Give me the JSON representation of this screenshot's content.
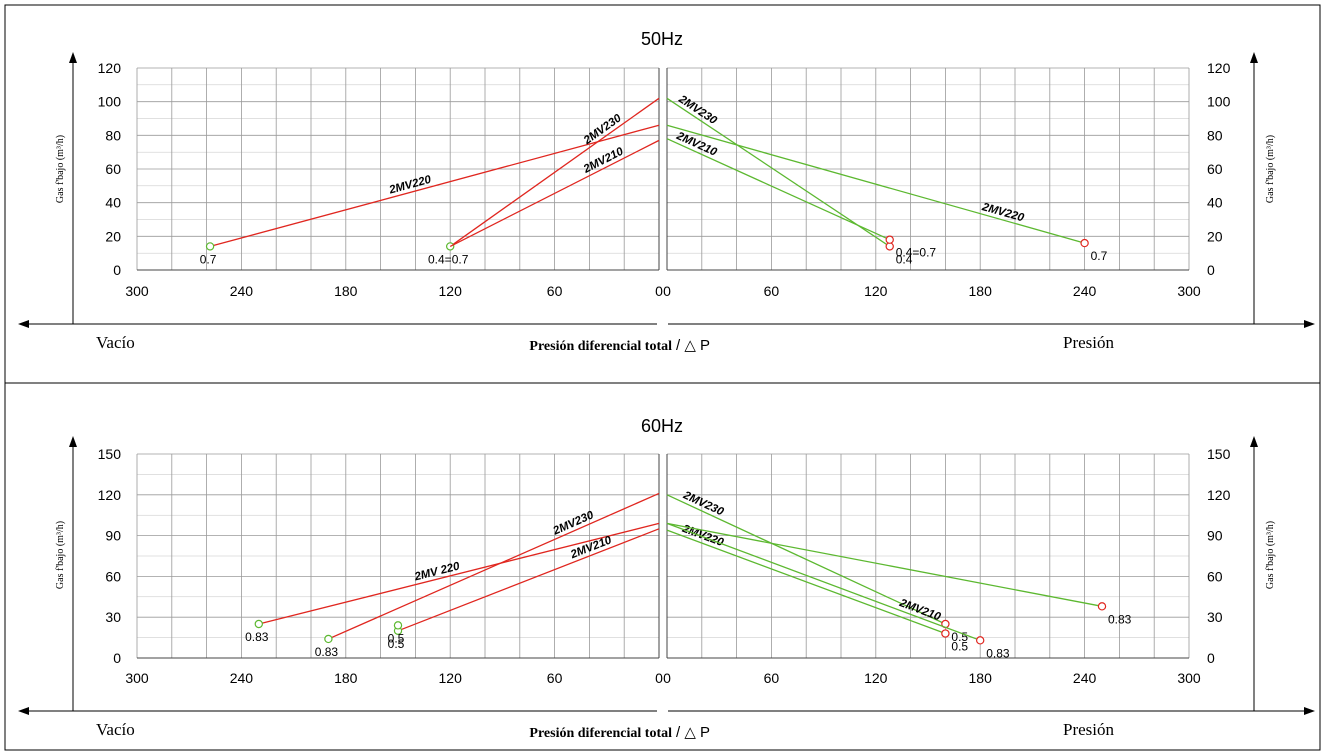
{
  "colors": {
    "vacuum": "#e0261f",
    "pressure": "#5cb830",
    "grid": "#9a9a9a",
    "frame": "#000000"
  },
  "chart_data": [
    {
      "type": "line",
      "title": "50Hz",
      "ylabel": "Gas f'bajo (m³/h)",
      "xlabel": "Presión diferencial total",
      "xlabel_suffix": "/ △  P",
      "left_label": "Vacío",
      "right_label": "Presión",
      "ylim": [
        0,
        120
      ],
      "yticks": [
        "0",
        "20",
        "40",
        "60",
        "80",
        "100",
        "120"
      ],
      "xlim_left": [
        0,
        300
      ],
      "xlim_right": [
        0,
        300
      ],
      "xticks_left": [
        "300",
        "240",
        "180",
        "120",
        "60",
        "0"
      ],
      "xticks_right": [
        "0",
        "60",
        "120",
        "180",
        "240",
        "300"
      ],
      "grid": true,
      "vacuum_series": [
        {
          "name": "2MV220",
          "x": [
            0,
            258
          ],
          "y": [
            86,
            14
          ],
          "marker": {
            "x": 258,
            "y": 14,
            "label": "0.7"
          }
        },
        {
          "name": "2MV230",
          "x": [
            0,
            120
          ],
          "y": [
            102,
            14
          ],
          "marker": {
            "x": 120,
            "y": 14,
            "label": "0.4=0.7"
          }
        },
        {
          "name": "2MV210",
          "x": [
            0,
            120
          ],
          "y": [
            77,
            14
          ]
        }
      ],
      "pressure_series": [
        {
          "name": "2MV230",
          "x": [
            0,
            128
          ],
          "y": [
            102,
            14
          ],
          "marker": {
            "x": 128,
            "y": 14,
            "label": "0.4"
          }
        },
        {
          "name": "2MV210",
          "x": [
            0,
            128
          ],
          "y": [
            78,
            18
          ],
          "marker": {
            "x": 128,
            "y": 18,
            "label": "0.4=0.7"
          }
        },
        {
          "name": "2MV220",
          "x": [
            0,
            240
          ],
          "y": [
            86,
            16
          ],
          "marker": {
            "x": 240,
            "y": 16,
            "label": "0.7"
          }
        }
      ]
    },
    {
      "type": "line",
      "title": "60Hz",
      "ylabel": "Gas f'bajo (m³/h)",
      "xlabel": "Presión diferencial total",
      "xlabel_suffix": "/ △ P",
      "left_label": "Vacío",
      "right_label": "Presión",
      "ylim": [
        0,
        150
      ],
      "yticks": [
        "0",
        "30",
        "60",
        "90",
        "120",
        "150"
      ],
      "xlim_left": [
        0,
        300
      ],
      "xlim_right": [
        0,
        300
      ],
      "xticks_left": [
        "300",
        "240",
        "180",
        "120",
        "60",
        "0"
      ],
      "xticks_right": [
        "0",
        "60",
        "120",
        "180",
        "240",
        "300"
      ],
      "grid": true,
      "vacuum_series": [
        {
          "name": "2MV 220",
          "x": [
            0,
            230
          ],
          "y": [
            99,
            25
          ],
          "marker": {
            "x": 230,
            "y": 25,
            "label": "0.83"
          }
        },
        {
          "name": "2MV230",
          "x": [
            0,
            190
          ],
          "y": [
            121,
            14
          ],
          "marker": {
            "x": 190,
            "y": 14,
            "label": "0.83"
          }
        },
        {
          "name": "2MV210",
          "x": [
            0,
            150
          ],
          "y": [
            95,
            20
          ],
          "marker": {
            "x": 150,
            "y": 20,
            "label": "0.5"
          }
        },
        {
          "name": "",
          "x": [
            150
          ],
          "y": [
            24
          ],
          "marker": {
            "x": 150,
            "y": 24,
            "label": "0.5"
          }
        }
      ],
      "pressure_series": [
        {
          "name": "2MV230",
          "x": [
            0,
            160
          ],
          "y": [
            120,
            25
          ],
          "marker": {
            "x": 160,
            "y": 25,
            "label": "0.5"
          }
        },
        {
          "name": "2MV220",
          "x": [
            0,
            160
          ],
          "y": [
            94,
            18
          ],
          "marker": {
            "x": 160,
            "y": 18,
            "label": "0.5"
          }
        },
        {
          "name": "2MV210",
          "x": [
            0,
            180
          ],
          "y": [
            99,
            13
          ],
          "marker": {
            "x": 180,
            "y": 13,
            "label": "0.83"
          }
        },
        {
          "name": "",
          "x": [
            0,
            250
          ],
          "y": [
            99,
            38
          ],
          "marker": {
            "x": 250,
            "y": 38,
            "label": "0.83"
          }
        }
      ]
    }
  ]
}
